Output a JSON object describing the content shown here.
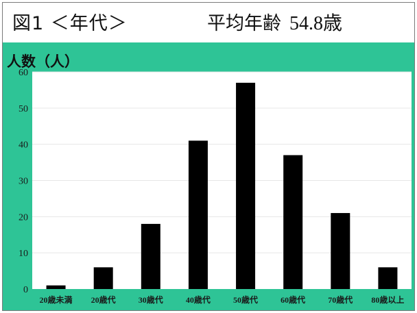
{
  "header": {
    "figure_title": "図1 ＜年代＞",
    "average_label": "平均年齢",
    "average_value": "54.8歳"
  },
  "colors": {
    "panel_bg": "#2ec496",
    "plot_bg": "#ffffff",
    "bar": "#000000",
    "grid": "#e6e6e6"
  },
  "chart_data": {
    "type": "bar",
    "ylabel": "人数（人）",
    "categories": [
      "20歳未満",
      "20歳代",
      "30歳代",
      "40歳代",
      "50歳代",
      "60歳代",
      "70歳代",
      "80歳以上"
    ],
    "values": [
      1,
      6,
      18,
      41,
      57,
      37,
      21,
      6
    ],
    "ylim": [
      0,
      60
    ],
    "yticks": [
      0,
      10,
      20,
      30,
      40,
      50,
      60
    ],
    "grid": true,
    "legend": "none"
  }
}
